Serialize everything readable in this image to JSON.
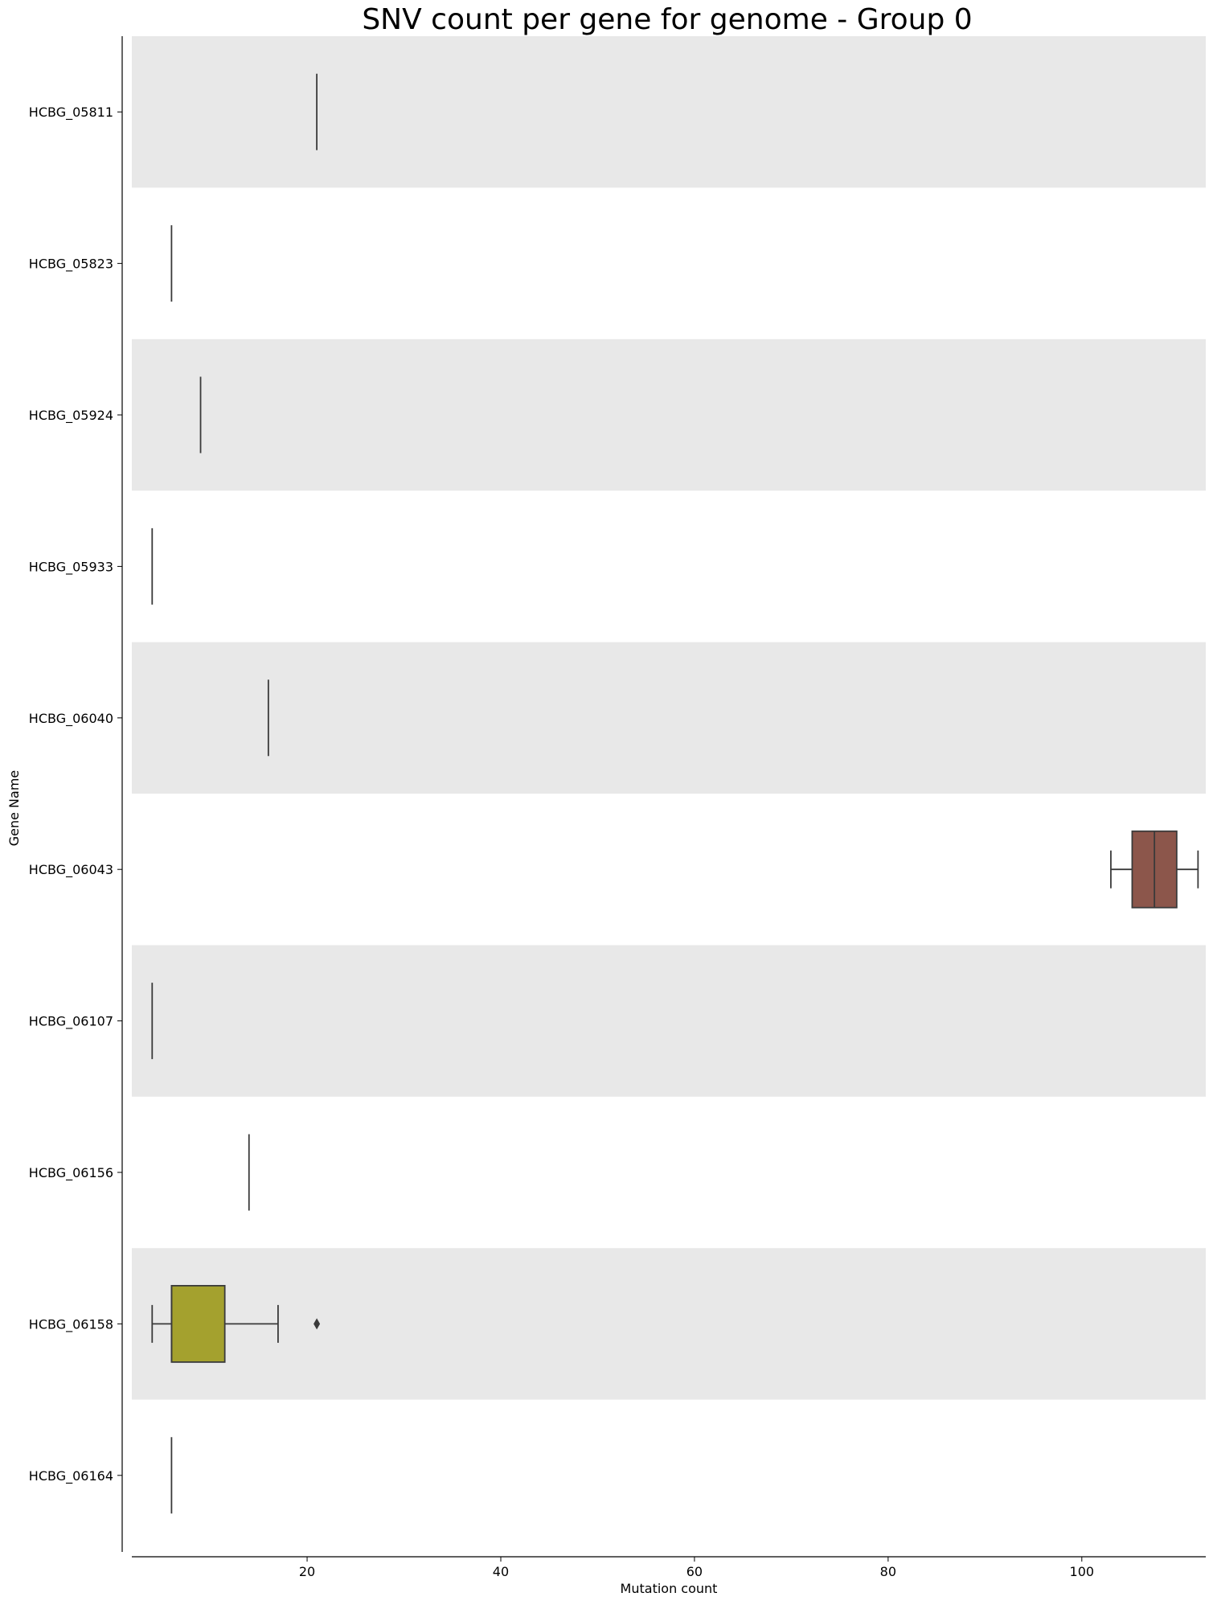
{
  "chart_data": {
    "type": "box",
    "orientation": "horizontal",
    "title": "SNV count per gene for genome - Group 0",
    "xlabel": "Mutation count",
    "ylabel": "Gene Name",
    "xlim": [
      1.9,
      112.8
    ],
    "xticks": [
      20,
      40,
      60,
      80,
      100
    ],
    "grid": false,
    "alternating_row_bands": true,
    "band_color": "#e8e8e8",
    "categories": [
      "HCBG_05811",
      "HCBG_05823",
      "HCBG_05924",
      "HCBG_05933",
      "HCBG_06040",
      "HCBG_06043",
      "HCBG_06107",
      "HCBG_06156",
      "HCBG_06158",
      "HCBG_06164"
    ],
    "boxes": [
      {
        "gene": "HCBG_05811",
        "whisker_low": 21,
        "q1": 21,
        "median": 21,
        "q3": 21,
        "whisker_high": 21,
        "outliers": [],
        "color": "#1f77b4"
      },
      {
        "gene": "HCBG_05823",
        "whisker_low": 6,
        "q1": 6,
        "median": 6,
        "q3": 6,
        "whisker_high": 6,
        "outliers": [],
        "color": "#ff7f0e"
      },
      {
        "gene": "HCBG_05924",
        "whisker_low": 9,
        "q1": 9,
        "median": 9,
        "q3": 9,
        "whisker_high": 9,
        "outliers": [],
        "color": "#2ca02c"
      },
      {
        "gene": "HCBG_05933",
        "whisker_low": 4,
        "q1": 4,
        "median": 4,
        "q3": 4,
        "whisker_high": 4,
        "outliers": [],
        "color": "#d62728"
      },
      {
        "gene": "HCBG_06040",
        "whisker_low": 16,
        "q1": 16,
        "median": 16,
        "q3": 16,
        "whisker_high": 16,
        "outliers": [],
        "color": "#9467bd"
      },
      {
        "gene": "HCBG_06043",
        "whisker_low": 103,
        "q1": 105.2,
        "median": 107.5,
        "q3": 109.8,
        "whisker_high": 112,
        "outliers": [],
        "color": "#8c564b"
      },
      {
        "gene": "HCBG_06107",
        "whisker_low": 4,
        "q1": 4,
        "median": 4,
        "q3": 4,
        "whisker_high": 4,
        "outliers": [],
        "color": "#e377c2"
      },
      {
        "gene": "HCBG_06156",
        "whisker_low": 14,
        "q1": 14,
        "median": 14,
        "q3": 14,
        "whisker_high": 14,
        "outliers": [],
        "color": "#7f7f7f"
      },
      {
        "gene": "HCBG_06158",
        "whisker_low": 4,
        "q1": 6,
        "median": 6,
        "q3": 11.5,
        "whisker_high": 17,
        "outliers": [
          21
        ],
        "color": "#a4a12e"
      },
      {
        "gene": "HCBG_06164",
        "whisker_low": 6,
        "q1": 6,
        "median": 6,
        "q3": 6,
        "whisker_high": 6,
        "outliers": [],
        "color": "#17becf"
      }
    ]
  }
}
